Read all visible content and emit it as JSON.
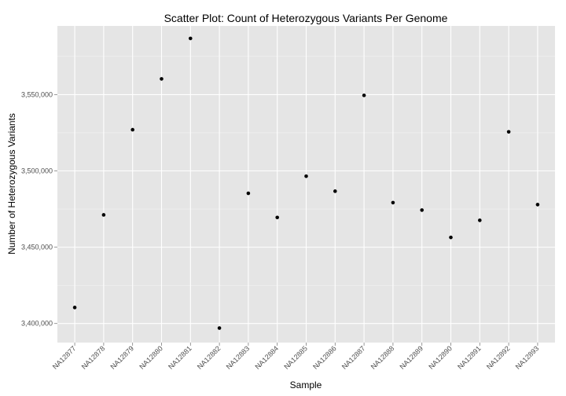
{
  "chart_data": {
    "type": "scatter",
    "title": "Scatter Plot: Count of Heterozygous Variants Per Genome",
    "xlabel": "Sample",
    "ylabel": "Number of Heterozygous Variants",
    "categories": [
      "NA12877",
      "NA12878",
      "NA12879",
      "NA12880",
      "NA12881",
      "NA12882",
      "NA12883",
      "NA12884",
      "NA12885",
      "NA12886",
      "NA12887",
      "NA12888",
      "NA12889",
      "NA12890",
      "NA12891",
      "NA12892",
      "NA12893"
    ],
    "values": [
      3410500,
      3471200,
      3527000,
      3560300,
      3586800,
      3397000,
      3485300,
      3469500,
      3496500,
      3486700,
      3549500,
      3479200,
      3474300,
      3456400,
      3467600,
      3525600,
      3477900
    ],
    "y_ticks": [
      3400000,
      3450000,
      3500000,
      3550000
    ],
    "y_tick_labels": [
      "3,400,000",
      "3,450,000",
      "3,500,000",
      "3,550,000"
    ],
    "ylim": [
      3387500,
      3595000
    ],
    "grid": true,
    "colors": {
      "panel": "#e5e5e5",
      "grid_major": "#ffffff",
      "grid_minor": "#f2f2f2",
      "point": "#000000"
    }
  }
}
